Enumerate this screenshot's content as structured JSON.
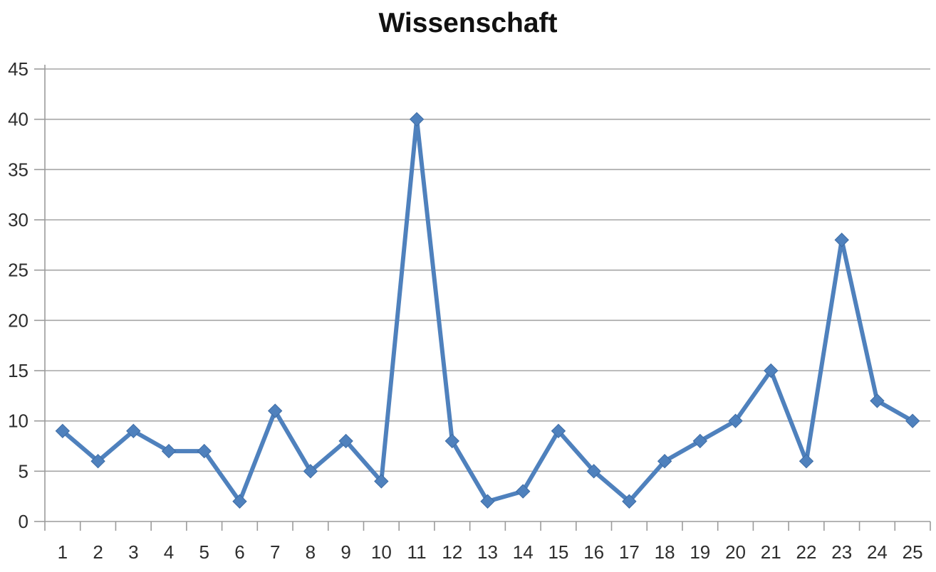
{
  "chart_data": {
    "type": "line",
    "title": "Wissenschaft",
    "categories": [
      "1",
      "2",
      "3",
      "4",
      "5",
      "6",
      "7",
      "8",
      "9",
      "10",
      "11",
      "12",
      "13",
      "14",
      "15",
      "16",
      "17",
      "18",
      "19",
      "20",
      "21",
      "22",
      "23",
      "24",
      "25"
    ],
    "values": [
      9,
      6,
      9,
      7,
      7,
      2,
      11,
      5,
      8,
      4,
      40,
      8,
      2,
      3,
      9,
      5,
      2,
      6,
      8,
      10,
      15,
      6,
      28,
      12,
      10
    ],
    "xlabel": "",
    "ylabel": "",
    "ylim": [
      0,
      45
    ],
    "yticks": [
      0,
      5,
      10,
      15,
      20,
      25,
      30,
      35,
      40,
      45
    ],
    "grid": "horizontal",
    "legend": "none",
    "marker": "diamond",
    "colors": {
      "line": "#4F81BD",
      "marker_fill": "#4F81BD",
      "marker_border": "#3D6CA5",
      "gridline": "#A6A6A6",
      "axis": "#9B9B9B",
      "tick_label": "#2E2E2E",
      "title": "#111111",
      "background": "#FFFFFF"
    }
  }
}
